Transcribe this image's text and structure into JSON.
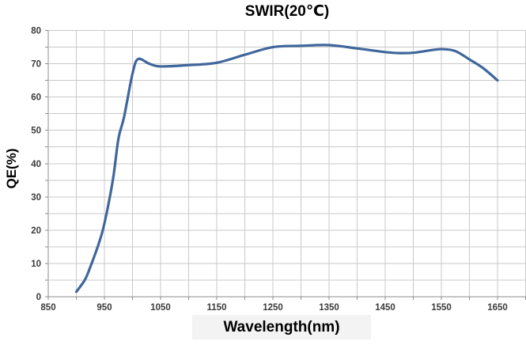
{
  "chart_data": {
    "type": "line",
    "title": "SWIR(20℃)",
    "xlabel": "Wavelength(nm)",
    "ylabel": "QE(%)",
    "xlim": [
      850,
      1700
    ],
    "ylim": [
      0,
      80
    ],
    "x_major_ticks": [
      850,
      950,
      1050,
      1150,
      1250,
      1350,
      1450,
      1550,
      1650
    ],
    "y_major_ticks": [
      0,
      10,
      20,
      30,
      40,
      50,
      60,
      70,
      80
    ],
    "x_minor_step": 50,
    "y_minor_step": 5,
    "grid": true,
    "legend": false,
    "series": [
      {
        "name": "QE",
        "color": "#40679B",
        "x": [
          900,
          915,
          925,
          940,
          950,
          965,
          975,
          985,
          1000,
          1010,
          1030,
          1050,
          1100,
          1150,
          1200,
          1250,
          1300,
          1350,
          1400,
          1450,
          1475,
          1500,
          1525,
          1550,
          1575,
          1600,
          1625,
          1650
        ],
        "y": [
          1.5,
          5,
          9,
          16,
          22,
          35,
          47.5,
          54,
          67,
          71.4,
          70,
          69.2,
          69.6,
          70.3,
          72.7,
          75,
          75.4,
          75.6,
          74.6,
          73.5,
          73.2,
          73.3,
          73.9,
          74.4,
          73.8,
          71.3,
          68.6,
          65
        ]
      }
    ],
    "colors": {
      "gridline": "#c9c9c9",
      "axis": "#8e8e8e",
      "tick_label": "#3b3b3b",
      "title": "#000000",
      "x_title_highlight": "#f3f3f3"
    }
  }
}
